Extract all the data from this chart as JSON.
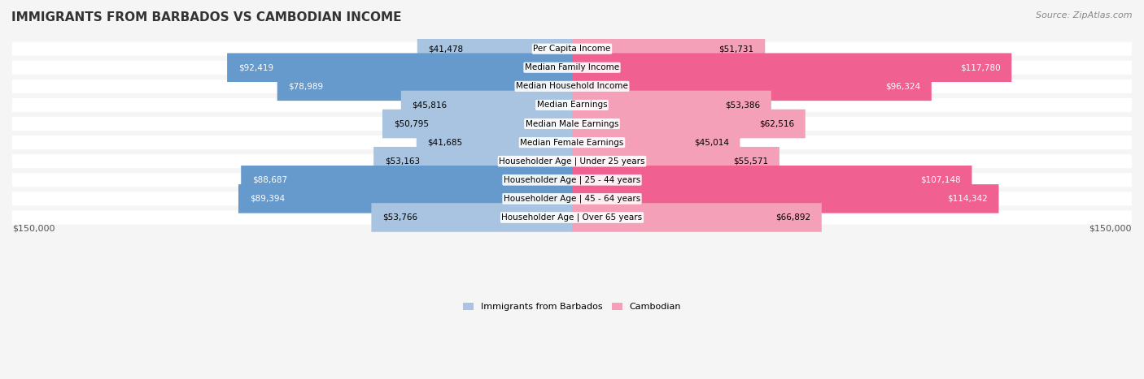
{
  "title": "IMMIGRANTS FROM BARBADOS VS CAMBODIAN INCOME",
  "source": "Source: ZipAtlas.com",
  "categories": [
    "Per Capita Income",
    "Median Family Income",
    "Median Household Income",
    "Median Earnings",
    "Median Male Earnings",
    "Median Female Earnings",
    "Householder Age | Under 25 years",
    "Householder Age | 25 - 44 years",
    "Householder Age | 45 - 64 years",
    "Householder Age | Over 65 years"
  ],
  "barbados_values": [
    41478,
    92419,
    78989,
    45816,
    50795,
    41685,
    53163,
    88687,
    89394,
    53766
  ],
  "cambodian_values": [
    51731,
    117780,
    96324,
    53386,
    62516,
    45014,
    55571,
    107148,
    114342,
    66892
  ],
  "barbados_labels": [
    "$41,478",
    "$92,419",
    "$78,989",
    "$45,816",
    "$50,795",
    "$41,685",
    "$53,163",
    "$88,687",
    "$89,394",
    "$53,766"
  ],
  "cambodian_labels": [
    "$51,731",
    "$117,780",
    "$96,324",
    "$53,386",
    "$62,516",
    "$45,014",
    "$55,571",
    "$107,148",
    "$114,342",
    "$66,892"
  ],
  "max_value": 150000,
  "barbados_color_light": "#a8c4e0",
  "barbados_color_dark": "#6699cc",
  "cambodian_color_light": "#f4a0b8",
  "cambodian_color_dark": "#f06090",
  "bg_color": "#f5f5f5",
  "row_bg": "#ffffff",
  "legend_barbados": "Immigrants from Barbados",
  "legend_cambodian": "Cambodian",
  "bottom_label_left": "$150,000",
  "bottom_label_right": "$150,000"
}
